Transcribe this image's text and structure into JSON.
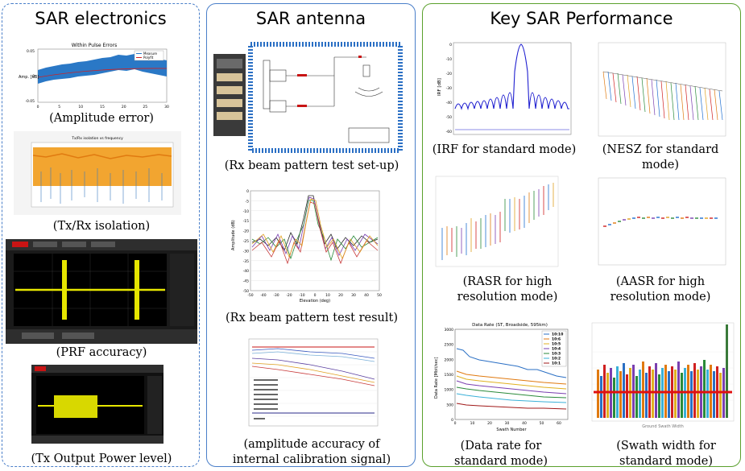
{
  "panels": {
    "electronics": {
      "title": "SAR electronics",
      "amp_chart_title": "Within Pulse Errors",
      "amp_legend": [
        "Measure",
        "Polyfit"
      ],
      "amp_ylabel": "Amp. [dB]",
      "amp_yticks": [
        "0.05",
        "0",
        "-0.05"
      ],
      "amp_xticks": [
        "0",
        "5",
        "10",
        "15",
        "20",
        "25",
        "30"
      ],
      "iso_chart_title": "Tx/Rx isolation vs frequency",
      "captions": [
        "(Amplitude error)",
        "(Tx/Rx isolation)",
        "(PRF accuracy)",
        "(Tx Output Power level)"
      ]
    },
    "antenna": {
      "title": "SAR antenna",
      "pattern_xlabel": "Elevation (deg)",
      "pattern_ylabel": "Amplitude (dB)",
      "pattern_xticks": [
        "-50",
        "-40",
        "-30",
        "-20",
        "-10",
        "0",
        "10",
        "20",
        "30",
        "40",
        "50"
      ],
      "pattern_yticks": [
        "0",
        "-5",
        "-10",
        "-15",
        "-20",
        "-25",
        "-30",
        "-35",
        "-40",
        "-45",
        "-50"
      ],
      "captions": [
        "(Rx beam pattern test set-up)",
        "(Rx beam pattern test result)",
        "(amplitude accuracy of internal calibration signal)"
      ]
    },
    "performance": {
      "title": "Key SAR Performance",
      "irf_ylabel": "IRF [dB]",
      "irf_yticks": [
        "0",
        "-10",
        "-20",
        "-30",
        "-40",
        "-50",
        "-60"
      ],
      "data_rate_title": "Data Rate (ST, Broadside, 595km)",
      "data_rate_ylabel": "Data Rate [Mbit/sec]",
      "data_rate_xlabel": "Swath Number",
      "data_rate_yticks": [
        "3000",
        "2500",
        "2000",
        "1500",
        "1000",
        "500",
        "0"
      ],
      "data_rate_xticks": [
        "0",
        "10",
        "20",
        "30",
        "40",
        "50",
        "60"
      ],
      "data_rate_legend": [
        "10:10",
        "10:6",
        "10:5",
        "10:4",
        "10:3",
        "10:2",
        "10:1"
      ],
      "swath_xlabel": "Ground Swath Width",
      "captions": [
        "(IRF for standard mode)",
        "(NESZ for standard mode)",
        "(RASR for high resolution mode)",
        "(AASR for high resolution mode)",
        "(Data rate for standard mode)",
        "(Swath width for standard mode)"
      ]
    }
  },
  "colors": {
    "electronics_border": "#4a7fc9",
    "antenna_border": "#4a7fc9",
    "performance_border": "#5aa02c",
    "irf_line": "#1f1fd0",
    "swath_limit": "#e01010"
  }
}
